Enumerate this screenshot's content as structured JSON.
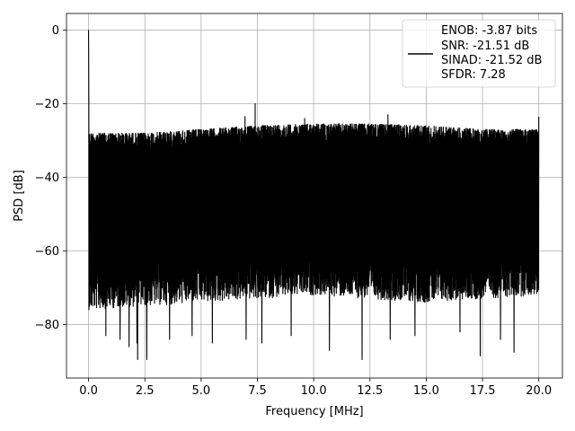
{
  "chart_data": {
    "type": "line",
    "xlabel": "Frequency [MHz]",
    "ylabel": "PSD [dB]",
    "xlim": [
      -0.98,
      21.05
    ],
    "ylim": [
      -94.5,
      4.5
    ],
    "xticks": [
      0.0,
      2.5,
      5.0,
      7.5,
      10.0,
      12.5,
      15.0,
      17.5,
      20.0
    ],
    "xtick_labels": [
      "0.0",
      "2.5",
      "5.0",
      "7.5",
      "10.0",
      "12.5",
      "15.0",
      "17.5",
      "20.0"
    ],
    "yticks": [
      0,
      -20,
      -40,
      -60,
      -80
    ],
    "ytick_labels": [
      "0",
      "−20",
      "−40",
      "−60",
      "−80"
    ],
    "grid": true,
    "legend_position": "top-right",
    "legend_lines": [
      "ENOB: -3.87 bits",
      "SNR: -21.51 dB",
      "SINAD: -21.52 dB",
      "SFDR: 7.28"
    ],
    "series": [
      {
        "color": "#000000",
        "description": "noise-like PSD from 0 to 20 MHz; peak ~0 dB at DC; upper envelope about -27 dB near 0 MHz rising to about -25 dB around 10 MHz and back to about -27 dB at 20 MHz; lower floor about -60 to -75 dB with deep dips down to about -90 dB",
        "x_range": [
          0.0,
          20.0
        ],
        "peak": {
          "x": 0.0,
          "y": 0.0
        },
        "envelope_upper": [
          [
            0.0,
            -28
          ],
          [
            2.5,
            -28
          ],
          [
            5.0,
            -27
          ],
          [
            7.5,
            -26
          ],
          [
            10.0,
            -25.5
          ],
          [
            12.5,
            -25.5
          ],
          [
            15.0,
            -26
          ],
          [
            17.5,
            -27
          ],
          [
            20.0,
            -27
          ]
        ],
        "envelope_lower_typical": [
          [
            0.0,
            -72
          ],
          [
            5.0,
            -70
          ],
          [
            10.0,
            -68
          ],
          [
            15.0,
            -70
          ],
          [
            20.0,
            -68
          ]
        ],
        "spurs": [
          {
            "x": 7.4,
            "y": -20.0
          },
          {
            "x": 6.95,
            "y": -23.5
          },
          {
            "x": 13.3,
            "y": -23.0
          },
          {
            "x": 20.0,
            "y": -23.5
          },
          {
            "x": 9.6,
            "y": -24.0
          }
        ],
        "deep_dips": [
          {
            "x": 0.77,
            "y": -83
          },
          {
            "x": 1.4,
            "y": -84
          },
          {
            "x": 1.8,
            "y": -86
          },
          {
            "x": 2.15,
            "y": -85
          },
          {
            "x": 2.18,
            "y": -89.5
          },
          {
            "x": 2.59,
            "y": -89.5
          },
          {
            "x": 3.6,
            "y": -84
          },
          {
            "x": 4.6,
            "y": -83
          },
          {
            "x": 5.5,
            "y": -85
          },
          {
            "x": 7.0,
            "y": -84
          },
          {
            "x": 7.7,
            "y": -85
          },
          {
            "x": 9.0,
            "y": -83
          },
          {
            "x": 10.7,
            "y": -87
          },
          {
            "x": 12.15,
            "y": -89.5
          },
          {
            "x": 13.4,
            "y": -84
          },
          {
            "x": 14.5,
            "y": -83
          },
          {
            "x": 16.5,
            "y": -82
          },
          {
            "x": 17.4,
            "y": -88.5
          },
          {
            "x": 18.3,
            "y": -84
          },
          {
            "x": 18.9,
            "y": -87.5
          }
        ]
      }
    ]
  }
}
